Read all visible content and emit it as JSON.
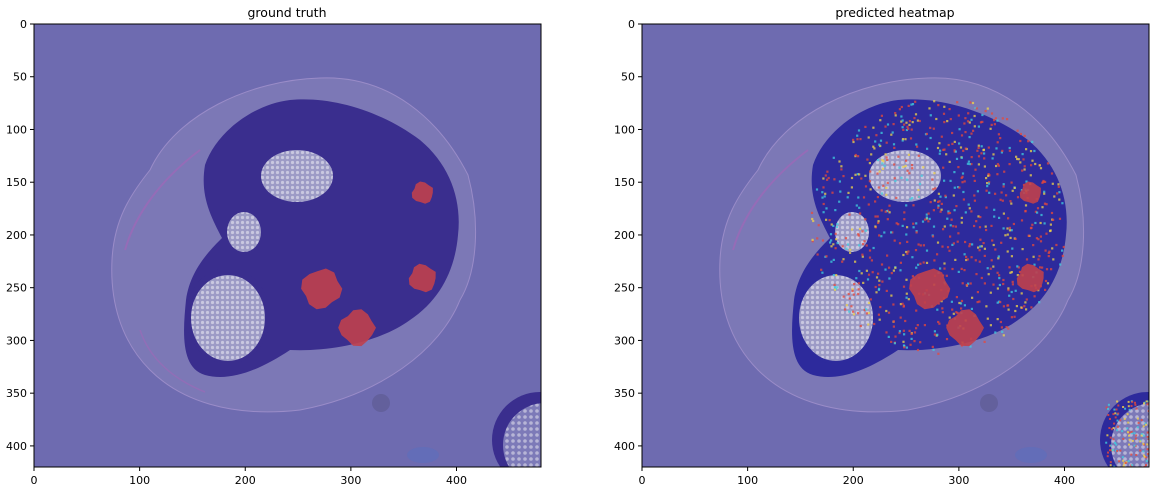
{
  "panels": [
    {
      "title": "ground truth",
      "x_ticks": [
        "0",
        "100",
        "200",
        "300",
        "400"
      ],
      "y_ticks": [
        "0",
        "50",
        "100",
        "150",
        "200",
        "250",
        "300",
        "350",
        "400"
      ],
      "xlim": [
        0,
        480
      ],
      "ylim": [
        420,
        0
      ],
      "regions": [
        {
          "cx": 368,
          "cy": 160,
          "r": 11,
          "kind": "tumor"
        },
        {
          "cx": 272,
          "cy": 251,
          "r": 20,
          "kind": "tumor"
        },
        {
          "cx": 368,
          "cy": 241,
          "r": 14,
          "kind": "tumor"
        },
        {
          "cx": 306,
          "cy": 288,
          "r": 18,
          "kind": "tumor"
        }
      ]
    },
    {
      "title": "predicted heatmap",
      "x_ticks": [
        "0",
        "100",
        "200",
        "300",
        "400"
      ],
      "y_ticks": [
        "0",
        "50",
        "100",
        "150",
        "200",
        "250",
        "300",
        "350",
        "400"
      ],
      "xlim": [
        0,
        480
      ],
      "ylim": [
        420,
        0
      ],
      "regions": [
        {
          "cx": 368,
          "cy": 160,
          "r": 11,
          "kind": "tumor"
        },
        {
          "cx": 272,
          "cy": 251,
          "r": 20,
          "kind": "tumor"
        },
        {
          "cx": 368,
          "cy": 241,
          "r": 14,
          "kind": "tumor"
        },
        {
          "cx": 306,
          "cy": 288,
          "r": 18,
          "kind": "tumor"
        }
      ]
    }
  ],
  "colors": {
    "background_overlay": "#6e6bb0",
    "tissue_dark": "#3a2e8e",
    "tissue_light": "#8f8fc4",
    "fat": "#a8a6c8",
    "tumor": "#c0404d",
    "heat_hot": "#e8483a",
    "heat_warm": "#f2d548",
    "heat_cool": "#3fd0e0"
  }
}
